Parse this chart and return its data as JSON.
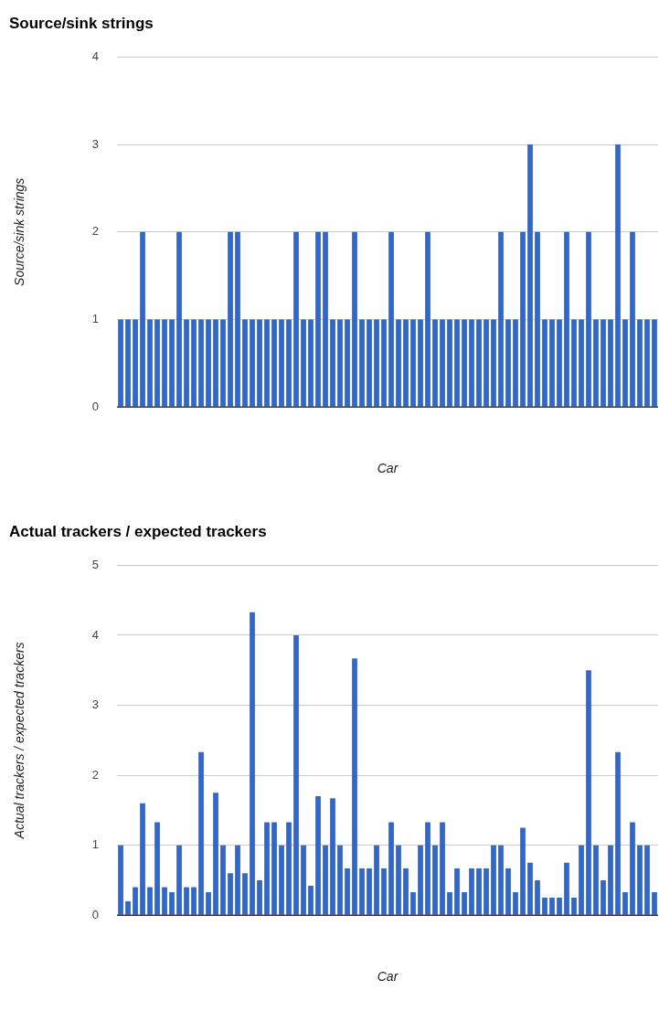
{
  "chart_data": [
    {
      "type": "bar",
      "title": "Source/sink strings",
      "xlabel": "Car",
      "ylabel": "Source/sink strings",
      "color": "#3366cc",
      "grid": "y",
      "legend": false,
      "tick_labels": "y",
      "categories": [
        null,
        null,
        null,
        null,
        null,
        null,
        null,
        null,
        null,
        null,
        null,
        null,
        null,
        null,
        null,
        null,
        null,
        null,
        null,
        null,
        null,
        null,
        null,
        null,
        null,
        null,
        null,
        null,
        null,
        null,
        null,
        null,
        null,
        null,
        null,
        null,
        null,
        null,
        null,
        null,
        null,
        null,
        null,
        null,
        null,
        null,
        null,
        null,
        null,
        null,
        null,
        null,
        null,
        null,
        null,
        null,
        null,
        null,
        null,
        null,
        null,
        null,
        null,
        null,
        null,
        null,
        null,
        null,
        null,
        null,
        null,
        null,
        null,
        null
      ],
      "values": [
        1,
        1,
        1,
        2,
        1,
        1,
        1,
        1,
        2,
        1,
        1,
        1,
        1,
        1,
        1,
        2,
        2,
        1,
        1,
        1,
        1,
        1,
        1,
        1,
        2,
        1,
        1,
        2,
        2,
        1,
        1,
        1,
        2,
        1,
        1,
        1,
        1,
        2,
        1,
        1,
        1,
        1,
        2,
        1,
        1,
        1,
        1,
        1,
        1,
        1,
        1,
        1,
        2,
        1,
        1,
        2,
        3,
        2,
        1,
        1,
        1,
        2,
        1,
        1,
        2,
        1,
        1,
        1,
        3,
        1,
        2,
        1,
        1,
        1
      ],
      "ylim": [
        0,
        4
      ],
      "yticks": [
        0,
        1,
        2,
        3,
        4
      ]
    },
    {
      "type": "bar",
      "title": "Actual trackers / expected trackers",
      "xlabel": "Car",
      "ylabel": "Actual trackers / expected trackers",
      "color": "#3366cc",
      "grid": "y",
      "legend": false,
      "tick_labels": "y",
      "categories": [
        null,
        null,
        null,
        null,
        null,
        null,
        null,
        null,
        null,
        null,
        null,
        null,
        null,
        null,
        null,
        null,
        null,
        null,
        null,
        null,
        null,
        null,
        null,
        null,
        null,
        null,
        null,
        null,
        null,
        null,
        null,
        null,
        null,
        null,
        null,
        null,
        null,
        null,
        null,
        null,
        null,
        null,
        null,
        null,
        null,
        null,
        null,
        null,
        null,
        null,
        null,
        null,
        null,
        null,
        null,
        null,
        null,
        null,
        null,
        null,
        null,
        null,
        null,
        null,
        null,
        null,
        null,
        null,
        null,
        null,
        null,
        null,
        null,
        null
      ],
      "values": [
        1,
        0.2,
        0.4,
        1.6,
        0.4,
        1.33,
        0.4,
        0.33,
        1,
        0.4,
        0.4,
        2.33,
        0.33,
        1.75,
        1,
        0.6,
        1,
        0.6,
        4.33,
        0.5,
        1.33,
        1.33,
        1,
        1.33,
        4,
        1,
        0.42,
        1.7,
        1,
        1.67,
        1,
        0.67,
        3.67,
        0.67,
        0.67,
        1,
        0.67,
        1.33,
        1,
        0.67,
        0.33,
        1,
        1.33,
        1,
        1.33,
        0.33,
        0.67,
        0.33,
        0.67,
        0.67,
        0.67,
        1,
        1,
        0.67,
        0.33,
        1.25,
        0.75,
        0.5,
        0.25,
        0.25,
        0.25,
        0.75,
        0.25,
        1,
        3.5,
        1,
        0.5,
        1,
        2.33,
        0.33,
        1.33,
        1,
        1,
        0.33
      ],
      "ylim": [
        0,
        5
      ],
      "yticks": [
        0,
        1,
        2,
        3,
        4,
        5
      ]
    }
  ]
}
